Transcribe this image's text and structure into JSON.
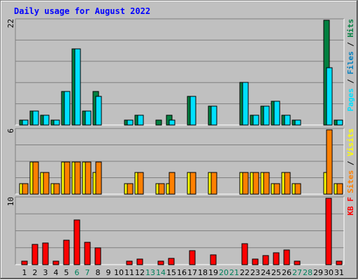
{
  "chart_data": {
    "title": "Daily usage for August 2022",
    "type": "bar",
    "days": [
      "1",
      "2",
      "3",
      "4",
      "5",
      "6",
      "7",
      "8",
      "9",
      "10",
      "11",
      "12",
      "13",
      "14",
      "15",
      "16",
      "17",
      "18",
      "19",
      "20",
      "21",
      "22",
      "23",
      "24",
      "25",
      "26",
      "27",
      "28",
      "29",
      "30",
      "31"
    ],
    "weekend_days": [
      "6",
      "7",
      "13",
      "14",
      "20",
      "21",
      "27",
      "28"
    ],
    "colors": {
      "title": "#0000ff",
      "hits": "#008040",
      "files": "#0080c0",
      "pages": "#00e0ff",
      "visits": "#ffff00",
      "sites": "#ff8000",
      "kbytes": "#ff0000",
      "weekend_label": "#00805c"
    },
    "panels": [
      {
        "id": "hits-files-pages",
        "max_label": "22",
        "ymax": 22,
        "legend": [
          {
            "text": "Pages",
            "color": "#00e0ff"
          },
          {
            "text": " / ",
            "color": "#000000"
          },
          {
            "text": "Files",
            "color": "#0080c0"
          },
          {
            "text": " / ",
            "color": "#000000"
          },
          {
            "text": "Hits",
            "color": "#008040"
          }
        ],
        "series": [
          {
            "name": "Hits",
            "color": "#008040",
            "values": [
              1,
              3,
              2,
              1,
              7,
              16,
              3,
              7,
              0,
              0,
              1,
              2,
              0,
              1,
              2,
              0,
              6,
              0,
              4,
              0,
              0,
              9,
              2,
              4,
              5,
              2,
              1,
              0,
              0,
              22,
              1
            ]
          },
          {
            "name": "Pages",
            "color": "#00e0ff",
            "values": [
              1,
              3,
              2,
              1,
              7,
              16,
              3,
              6,
              0,
              0,
              1,
              2,
              0,
              0,
              1,
              0,
              6,
              0,
              4,
              0,
              0,
              9,
              2,
              4,
              5,
              2,
              1,
              0,
              0,
              12,
              1
            ]
          }
        ]
      },
      {
        "id": "visits-sites",
        "max_label": "6",
        "ymax": 6,
        "legend": [
          {
            "text": "Sites",
            "color": "#ff8000"
          },
          {
            "text": " / ",
            "color": "#000000"
          },
          {
            "text": "Visits",
            "color": "#ffff00"
          }
        ],
        "series": [
          {
            "name": "Visits",
            "color": "#ffff00",
            "values": [
              1,
              3,
              2,
              1,
              3,
              3,
              3,
              2,
              0,
              0,
              1,
              2,
              0,
              1,
              1,
              0,
              2,
              0,
              2,
              0,
              0,
              2,
              2,
              2,
              1,
              2,
              1,
              0,
              0,
              2,
              1
            ]
          },
          {
            "name": "Sites",
            "color": "#ff8000",
            "values": [
              1,
              3,
              2,
              1,
              3,
              3,
              3,
              3,
              0,
              0,
              1,
              2,
              0,
              1,
              2,
              0,
              2,
              0,
              2,
              0,
              0,
              2,
              2,
              2,
              1,
              2,
              1,
              0,
              0,
              6,
              1
            ]
          }
        ]
      },
      {
        "id": "kbytes",
        "max_label": "10",
        "ymax": 10,
        "legend": [
          {
            "text": "KB F",
            "color": "#ff0000"
          }
        ],
        "series": [
          {
            "name": "KB F",
            "color": "#ff0000",
            "values": [
              0.5,
              3,
              3.3,
              0.5,
              3.7,
              6.7,
              3.4,
              2.5,
              0,
              0,
              0.5,
              0.8,
              0,
              0.5,
              0.9,
              0,
              2.1,
              0,
              1.5,
              0,
              0,
              3.2,
              0.8,
              1.4,
              1.8,
              2.2,
              0.5,
              0,
              0,
              10,
              0.5
            ]
          }
        ]
      }
    ]
  }
}
